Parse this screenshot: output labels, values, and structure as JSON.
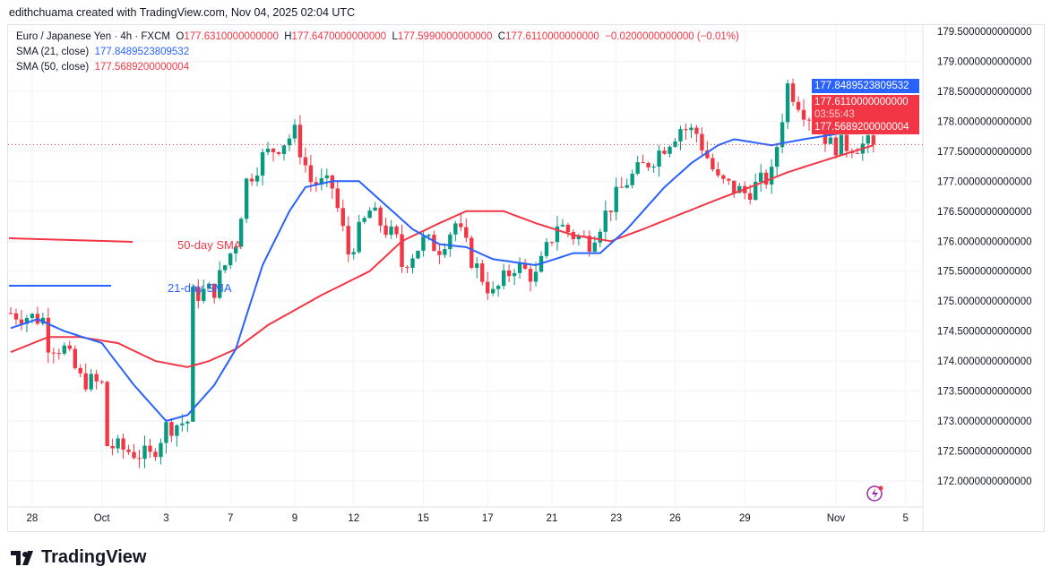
{
  "credit": "edithchuama created with TradingView.com, Nov 04, 2025 02:04 UTC",
  "legend": {
    "symbol": "Euro / Japanese Yen · 4h · FXCM",
    "o_label": "O",
    "o": "177.6310000000000",
    "h_label": "H",
    "h": "177.6470000000000",
    "l_label": "L",
    "l": "177.5990000000000",
    "c_label": "C",
    "c": "177.6110000000000",
    "change": "−0.0200000000000 (−0.01%)",
    "sma21_label": "SMA (21, close)",
    "sma21": "177.8489523809532",
    "sma50_label": "SMA (50, close)",
    "sma50": "177.5689200000004"
  },
  "price_labels": {
    "sma21": "177.8489523809532",
    "last": "177.6110000000000",
    "countdown": "03:55:43",
    "sma50": "177.5689200000004"
  },
  "logo": "TradingView",
  "chart_data": {
    "type": "candlestick",
    "colors": {
      "up": "#089981",
      "down": "#f23645",
      "sma21": "#2962ff",
      "sma50": "#f23645"
    },
    "y_ticks": [
      "179.5000000000000",
      "179.0000000000000",
      "178.5000000000000",
      "178.0000000000000",
      "177.5000000000000",
      "177.0000000000000",
      "176.5000000000000",
      "176.0000000000000",
      "175.5000000000000",
      "175.0000000000000",
      "174.5000000000000",
      "174.0000000000000",
      "173.5000000000000",
      "173.0000000000000",
      "172.5000000000000",
      "172.0000000000000"
    ],
    "ylim": [
      172.0,
      179.5
    ],
    "x_ticks": [
      {
        "label": "28",
        "i": 4
      },
      {
        "label": "Oct",
        "i": 17
      },
      {
        "label": "3",
        "i": 29
      },
      {
        "label": "7",
        "i": 41
      },
      {
        "label": "9",
        "i": 53
      },
      {
        "label": "12",
        "i": 64
      },
      {
        "label": "15",
        "i": 77
      },
      {
        "label": "17",
        "i": 89
      },
      {
        "label": "21",
        "i": 101
      },
      {
        "label": "23",
        "i": 113
      },
      {
        "label": "26",
        "i": 124
      },
      {
        "label": "29",
        "i": 137
      },
      {
        "label": "Nov",
        "i": 154
      },
      {
        "label": "5",
        "i": 167
      }
    ],
    "close_path": [
      [
        0,
        174.8
      ],
      [
        6,
        174.7
      ],
      [
        7,
        174.3
      ],
      [
        10,
        174.2
      ],
      [
        13,
        173.7
      ],
      [
        17,
        173.6
      ],
      [
        18,
        172.6
      ],
      [
        22,
        172.5
      ],
      [
        26,
        172.4
      ],
      [
        29,
        172.9
      ],
      [
        33,
        173.0
      ],
      [
        34,
        175.1
      ],
      [
        38,
        175.2
      ],
      [
        42,
        176.0
      ],
      [
        44,
        177.0
      ],
      [
        47,
        177.4
      ],
      [
        50,
        177.6
      ],
      [
        53,
        177.8
      ],
      [
        56,
        177.0
      ],
      [
        60,
        176.9
      ],
      [
        63,
        175.8
      ],
      [
        67,
        176.5
      ],
      [
        72,
        176.0
      ],
      [
        73,
        175.6
      ],
      [
        77,
        176.0
      ],
      [
        80,
        175.9
      ],
      [
        83,
        176.3
      ],
      [
        86,
        175.7
      ],
      [
        90,
        175.1
      ],
      [
        94,
        175.6
      ],
      [
        98,
        175.4
      ],
      [
        102,
        176.3
      ],
      [
        105,
        176.1
      ],
      [
        108,
        176.0
      ],
      [
        112,
        176.6
      ],
      [
        115,
        177.0
      ],
      [
        120,
        177.4
      ],
      [
        125,
        177.9
      ],
      [
        128,
        177.8
      ],
      [
        132,
        177.0
      ],
      [
        137,
        176.8
      ],
      [
        142,
        177.1
      ],
      [
        143,
        177.6
      ],
      [
        145,
        178.6
      ],
      [
        148,
        178.2
      ],
      [
        151,
        177.9
      ],
      [
        153,
        177.6
      ],
      [
        156,
        177.6
      ],
      [
        161,
        177.61
      ]
    ],
    "sma21_path": [
      [
        0,
        174.55
      ],
      [
        5,
        174.7
      ],
      [
        10,
        174.5
      ],
      [
        17,
        174.3
      ],
      [
        23,
        173.6
      ],
      [
        29,
        173.0
      ],
      [
        33,
        173.1
      ],
      [
        38,
        173.6
      ],
      [
        42,
        174.2
      ],
      [
        47,
        175.6
      ],
      [
        52,
        176.5
      ],
      [
        55,
        176.9
      ],
      [
        60,
        177.0
      ],
      [
        65,
        177.0
      ],
      [
        70,
        176.6
      ],
      [
        75,
        176.2
      ],
      [
        80,
        175.95
      ],
      [
        85,
        175.9
      ],
      [
        90,
        175.7
      ],
      [
        98,
        175.6
      ],
      [
        105,
        175.8
      ],
      [
        110,
        175.8
      ],
      [
        115,
        176.2
      ],
      [
        122,
        176.9
      ],
      [
        127,
        177.3
      ],
      [
        132,
        177.6
      ],
      [
        135,
        177.7
      ],
      [
        142,
        177.6
      ],
      [
        148,
        177.7
      ],
      [
        155,
        177.8
      ],
      [
        161,
        177.85
      ]
    ],
    "sma50_path": [
      [
        0,
        174.15
      ],
      [
        7,
        174.4
      ],
      [
        13,
        174.4
      ],
      [
        20,
        174.3
      ],
      [
        27,
        174.0
      ],
      [
        33,
        173.9
      ],
      [
        37,
        174.0
      ],
      [
        42,
        174.2
      ],
      [
        48,
        174.6
      ],
      [
        58,
        175.1
      ],
      [
        67,
        175.5
      ],
      [
        73,
        176.0
      ],
      [
        80,
        176.3
      ],
      [
        85,
        176.5
      ],
      [
        92,
        176.5
      ],
      [
        98,
        176.3
      ],
      [
        105,
        176.1
      ],
      [
        112,
        176.0
      ],
      [
        118,
        176.2
      ],
      [
        125,
        176.45
      ],
      [
        132,
        176.7
      ],
      [
        138,
        176.9
      ],
      [
        145,
        177.15
      ],
      [
        152,
        177.35
      ],
      [
        161,
        177.6
      ]
    ],
    "annotations": [
      "50-day SMA",
      "21-day SMA"
    ],
    "last_price": 177.611
  }
}
